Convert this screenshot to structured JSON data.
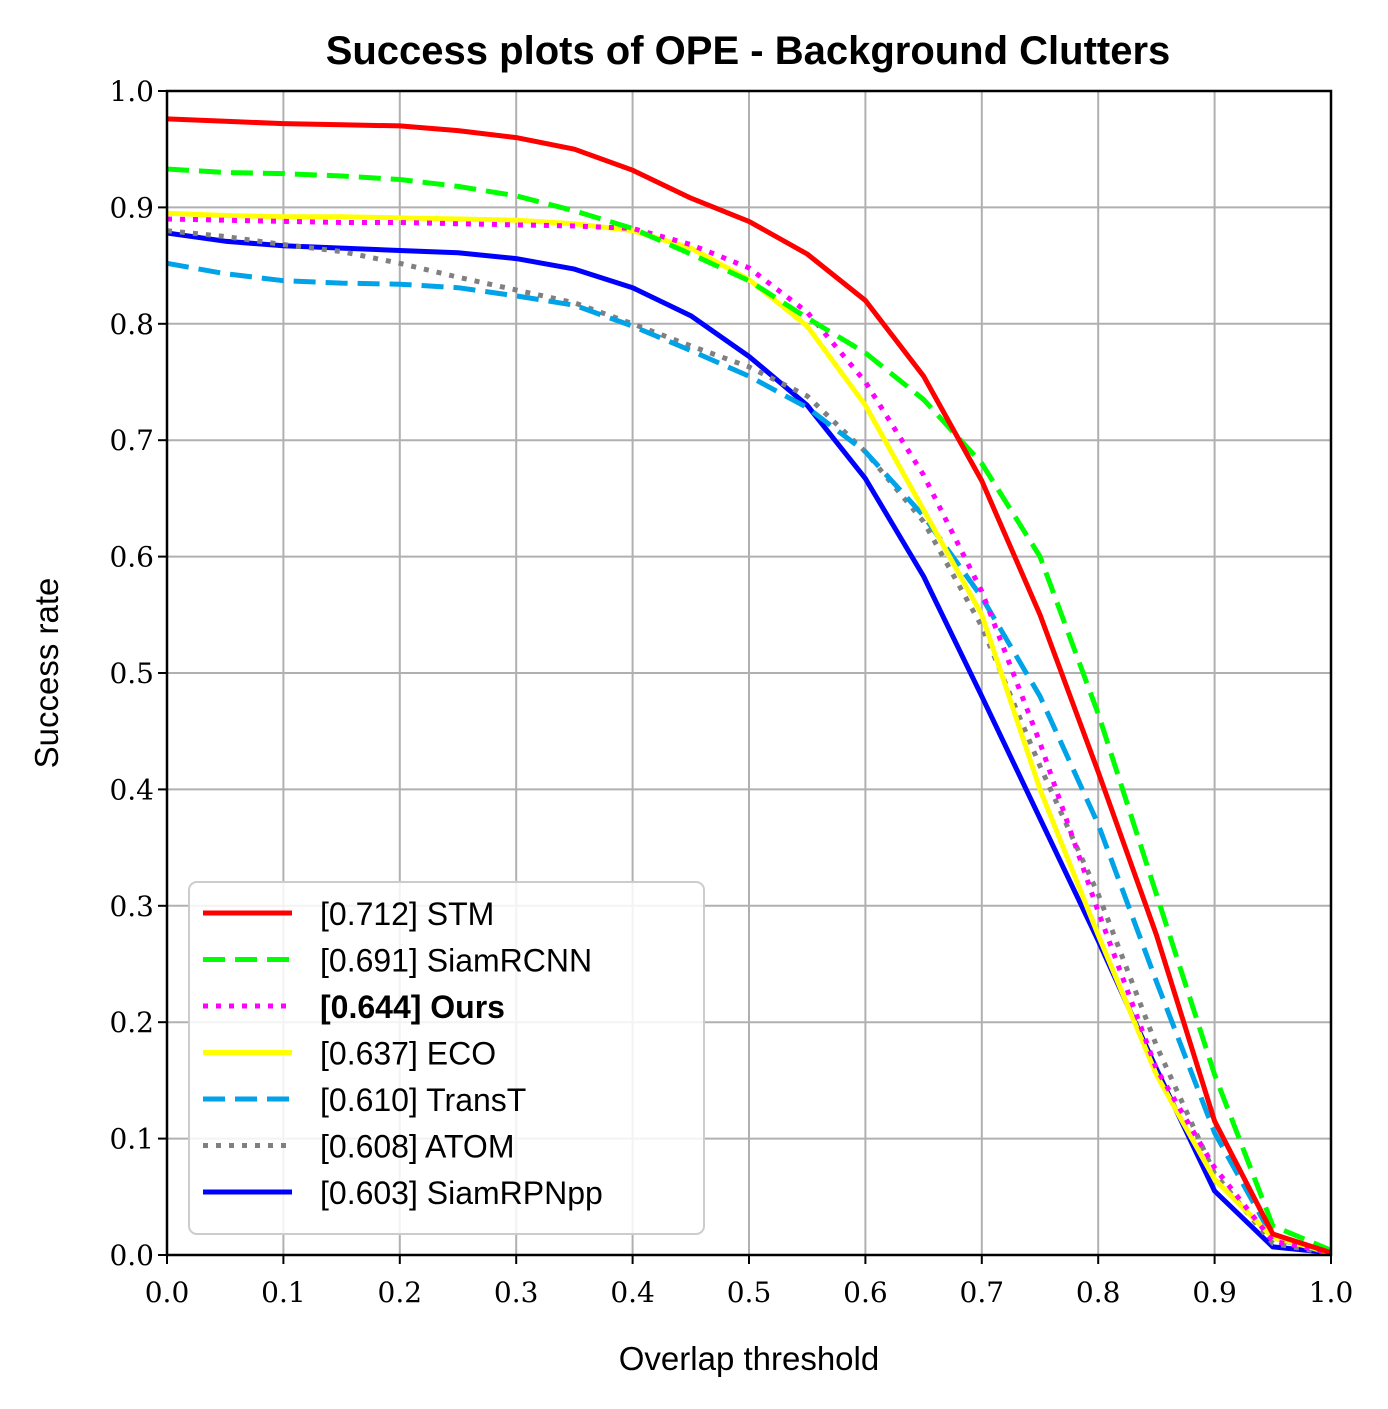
{
  "chart_data": {
    "type": "line",
    "title": "Success plots of OPE - Background Clutters",
    "xlabel": "Overlap threshold",
    "ylabel": "Success rate",
    "xlim": [
      0,
      1
    ],
    "ylim": [
      0,
      1
    ],
    "xticks": [
      "0.0",
      "0.1",
      "0.2",
      "0.3",
      "0.4",
      "0.5",
      "0.6",
      "0.7",
      "0.8",
      "0.9",
      "1.0"
    ],
    "yticks": [
      "0.0",
      "0.1",
      "0.2",
      "0.3",
      "0.4",
      "0.5",
      "0.6",
      "0.7",
      "0.8",
      "0.9",
      "1.0"
    ],
    "grid": true,
    "legend_position": "lower-left",
    "x": [
      0.0,
      0.05,
      0.1,
      0.15,
      0.2,
      0.25,
      0.3,
      0.35,
      0.4,
      0.45,
      0.5,
      0.55,
      0.6,
      0.65,
      0.7,
      0.75,
      0.8,
      0.85,
      0.9,
      0.95,
      1.0
    ],
    "series": [
      {
        "name": "[0.712] STM",
        "color": "#ff0000",
        "style": "solid",
        "bold": false,
        "values": [
          0.976,
          0.974,
          0.972,
          0.971,
          0.97,
          0.966,
          0.96,
          0.95,
          0.932,
          0.908,
          0.888,
          0.86,
          0.82,
          0.755,
          0.665,
          0.55,
          0.415,
          0.275,
          0.115,
          0.018,
          0.002
        ]
      },
      {
        "name": "[0.691] SiamRCNN",
        "color": "#00ff00",
        "style": "dashed",
        "bold": false,
        "values": [
          0.933,
          0.93,
          0.929,
          0.927,
          0.924,
          0.918,
          0.91,
          0.897,
          0.882,
          0.86,
          0.837,
          0.805,
          0.775,
          0.735,
          0.68,
          0.6,
          0.465,
          0.31,
          0.155,
          0.025,
          0.004
        ]
      },
      {
        "name": "[0.644] Ours",
        "color": "#ff00ff",
        "style": "dotted",
        "bold": true,
        "values": [
          0.89,
          0.889,
          0.888,
          0.887,
          0.887,
          0.886,
          0.885,
          0.884,
          0.882,
          0.868,
          0.848,
          0.81,
          0.75,
          0.67,
          0.57,
          0.44,
          0.295,
          0.16,
          0.075,
          0.012,
          0.002
        ]
      },
      {
        "name": "[0.637] ECO",
        "color": "#ffff00",
        "style": "solid",
        "bold": false,
        "values": [
          0.895,
          0.893,
          0.892,
          0.892,
          0.891,
          0.89,
          0.889,
          0.886,
          0.88,
          0.865,
          0.838,
          0.798,
          0.73,
          0.64,
          0.55,
          0.4,
          0.275,
          0.155,
          0.065,
          0.015,
          0.002
        ]
      },
      {
        "name": "[0.610] TransT",
        "color": "#00a2e8",
        "style": "dashed",
        "bold": false,
        "values": [
          0.852,
          0.843,
          0.837,
          0.835,
          0.834,
          0.831,
          0.824,
          0.816,
          0.798,
          0.777,
          0.755,
          0.728,
          0.69,
          0.635,
          0.565,
          0.48,
          0.37,
          0.235,
          0.105,
          0.015,
          0.001
        ]
      },
      {
        "name": "[0.608] ATOM",
        "color": "#808080",
        "style": "dotted",
        "bold": false,
        "values": [
          0.88,
          0.875,
          0.868,
          0.862,
          0.852,
          0.84,
          0.829,
          0.818,
          0.8,
          0.781,
          0.763,
          0.738,
          0.69,
          0.63,
          0.54,
          0.42,
          0.31,
          0.18,
          0.07,
          0.01,
          0.001
        ]
      },
      {
        "name": "[0.603] SiamRPNpp",
        "color": "#0000ff",
        "style": "solid",
        "bold": false,
        "values": [
          0.878,
          0.871,
          0.867,
          0.865,
          0.863,
          0.861,
          0.856,
          0.847,
          0.831,
          0.807,
          0.772,
          0.73,
          0.667,
          0.583,
          0.48,
          0.375,
          0.27,
          0.16,
          0.055,
          0.007,
          0.002
        ]
      }
    ]
  }
}
